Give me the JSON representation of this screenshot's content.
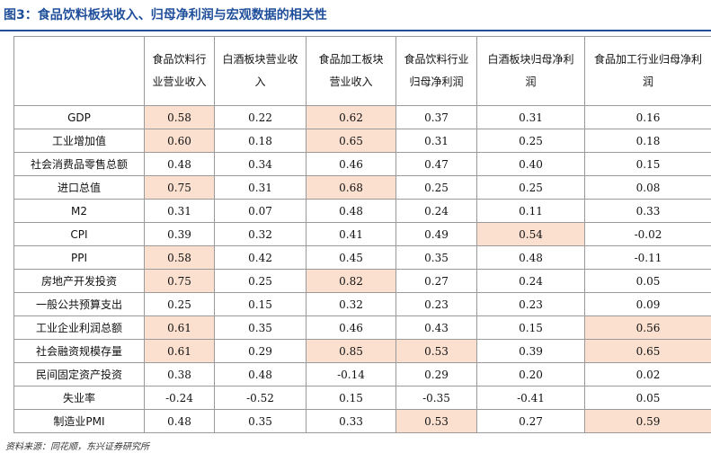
{
  "title": "图3：食品饮料板块收入、归母净利润与宏观数据的相关性",
  "table": {
    "header": [
      "",
      "食品饮料行业营业收入",
      "白酒板块营业收入",
      "食品加工板块营业收入",
      "食品饮料行业归母净利润",
      "白酒板块归母净利润",
      "食品加工行业归母净利润"
    ],
    "highlight_color": "#fbe0d0",
    "rows": [
      {
        "label": "GDP",
        "values": [
          "0.58",
          "0.22",
          "0.62",
          "0.37",
          "0.31",
          "0.16"
        ],
        "highlight": [
          0,
          2
        ]
      },
      {
        "label": "工业增加值",
        "values": [
          "0.60",
          "0.18",
          "0.65",
          "0.31",
          "0.25",
          "0.18"
        ],
        "highlight": [
          0,
          2
        ]
      },
      {
        "label": "社会消费品零售总额",
        "values": [
          "0.48",
          "0.34",
          "0.46",
          "0.47",
          "0.40",
          "0.15"
        ],
        "highlight": []
      },
      {
        "label": "进口总值",
        "values": [
          "0.75",
          "0.31",
          "0.68",
          "0.25",
          "0.25",
          "0.08"
        ],
        "highlight": [
          0,
          2
        ]
      },
      {
        "label": "M2",
        "values": [
          "0.31",
          "0.07",
          "0.48",
          "0.24",
          "0.11",
          "0.33"
        ],
        "highlight": []
      },
      {
        "label": "CPI",
        "values": [
          "0.39",
          "0.32",
          "0.41",
          "0.49",
          "0.54",
          "-0.02"
        ],
        "highlight": [
          4
        ]
      },
      {
        "label": "PPI",
        "values": [
          "0.58",
          "0.42",
          "0.45",
          "0.35",
          "0.48",
          "-0.11"
        ],
        "highlight": [
          0
        ]
      },
      {
        "label": "房地产开发投资",
        "values": [
          "0.75",
          "0.25",
          "0.82",
          "0.27",
          "0.24",
          "0.05"
        ],
        "highlight": [
          0,
          2
        ]
      },
      {
        "label": "一般公共预算支出",
        "values": [
          "0.25",
          "0.15",
          "0.32",
          "0.23",
          "0.23",
          "0.09"
        ],
        "highlight": []
      },
      {
        "label": "工业企业利润总额",
        "values": [
          "0.61",
          "0.35",
          "0.46",
          "0.43",
          "0.15",
          "0.56"
        ],
        "highlight": [
          0,
          5
        ]
      },
      {
        "label": "社会融资规模存量",
        "values": [
          "0.61",
          "0.29",
          "0.85",
          "0.53",
          "0.39",
          "0.65"
        ],
        "highlight": [
          0,
          2,
          3,
          5
        ]
      },
      {
        "label": "民间固定资产投资",
        "values": [
          "0.38",
          "0.48",
          "-0.14",
          "0.29",
          "0.20",
          "0.02"
        ],
        "highlight": []
      },
      {
        "label": "失业率",
        "values": [
          "-0.24",
          "-0.52",
          "0.15",
          "-0.35",
          "-0.41",
          "0.05"
        ],
        "highlight": []
      },
      {
        "label": "制造业PMI",
        "values": [
          "0.48",
          "0.35",
          "0.33",
          "0.53",
          "0.27",
          "0.59"
        ],
        "highlight": [
          3,
          5
        ]
      }
    ]
  },
  "source": "资料来源：同花顺，东兴证券研究所"
}
